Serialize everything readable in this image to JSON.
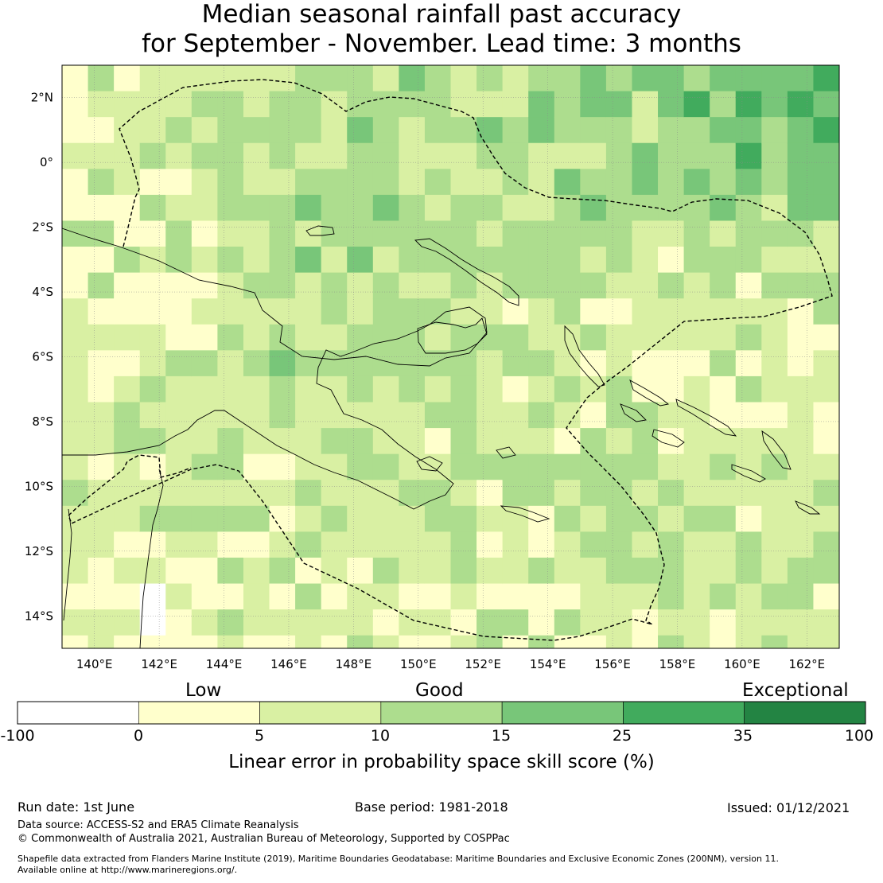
{
  "title": {
    "line1": "Median seasonal rainfall past accuracy",
    "line2": "for September - November. Lead time: 3 months"
  },
  "map": {
    "extent": {
      "lon": [
        139.0,
        163.0
      ],
      "lat": [
        -15.0,
        3.0
      ]
    },
    "cell_size_deg": 0.8,
    "longitude_ticks": [
      "140°E",
      "142°E",
      "144°E",
      "146°E",
      "148°E",
      "150°E",
      "152°E",
      "154°E",
      "156°E",
      "158°E",
      "160°E",
      "162°E"
    ],
    "latitude_ticks": [
      "2°N",
      "0°",
      "2°S",
      "4°S",
      "6°S",
      "8°S",
      "10°S",
      "12°S",
      "14°S"
    ],
    "grid": true,
    "boundary_style": "dashed"
  },
  "legend": {
    "categories": [
      "Low",
      "Good",
      "Exceptional"
    ],
    "bin_edges": [
      "-100",
      "0",
      "5",
      "10",
      "15",
      "25",
      "35",
      "100"
    ],
    "colors": [
      "#ffffff",
      "#ffffcc",
      "#d9f0a3",
      "#addd8e",
      "#78c679",
      "#41ab5d",
      "#238443"
    ],
    "title": "Linear error in probability space skill score (%)"
  },
  "footer": {
    "run_date": "Run date: 1st June",
    "base_period": "Base period: 1981-2018",
    "issued": "Issued: 01/12/2021",
    "data_source": "Data source: ACCESS-S2 and ERA5 Climate Reanalysis",
    "copyright": "© Commonwealth of Australia 2021, Australian Bureau of Meteorology, Supported by COSPPac",
    "shapefile_1": "Shapefile data extracted from Flanders Marine Institute (2019), Maritime Boundaries Geodatabase: Maritime Boundaries and Exclusive Economic Zones (200NM), version 11.",
    "shapefile_2": "Available online at http://www.marineregions.org/."
  }
}
